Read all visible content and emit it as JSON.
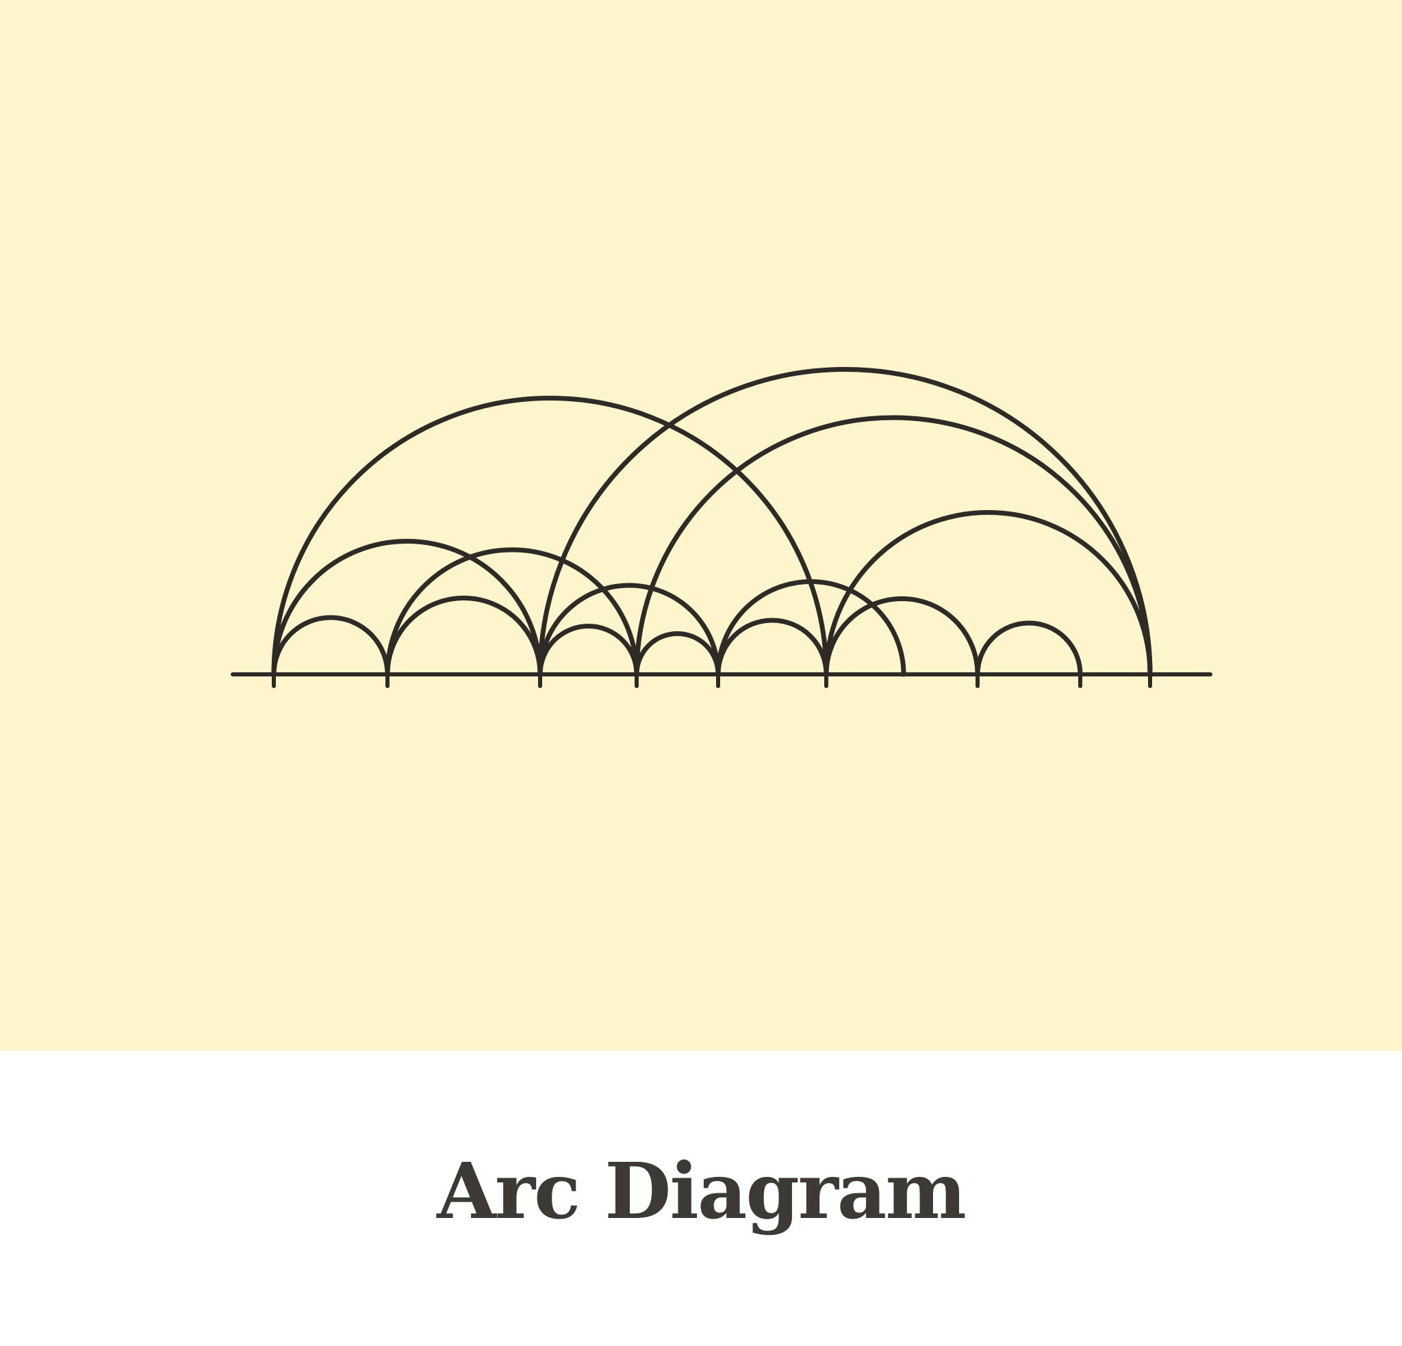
{
  "title": "Arc Diagram",
  "colors": {
    "background": "#fef5cc",
    "caption_background": "#ffffff",
    "ink": "#2e2b27",
    "title_text": "#3d3a35"
  },
  "diagram": {
    "node_count": 10,
    "arcs": [
      {
        "from": 1,
        "to": 2
      },
      {
        "from": 1,
        "to": 3
      },
      {
        "from": 1,
        "to": 6
      },
      {
        "from": 2,
        "to": 3
      },
      {
        "from": 2,
        "to": 4
      },
      {
        "from": 3,
        "to": 4
      },
      {
        "from": 3,
        "to": 5
      },
      {
        "from": 3,
        "to": 10
      },
      {
        "from": 4,
        "to": 5
      },
      {
        "from": 4,
        "to": 10
      },
      {
        "from": 5,
        "to": 6
      },
      {
        "from": 5,
        "to": 7
      },
      {
        "from": 6,
        "to": 8
      },
      {
        "from": 6,
        "to": 10
      },
      {
        "from": 8,
        "to": 9
      }
    ]
  }
}
